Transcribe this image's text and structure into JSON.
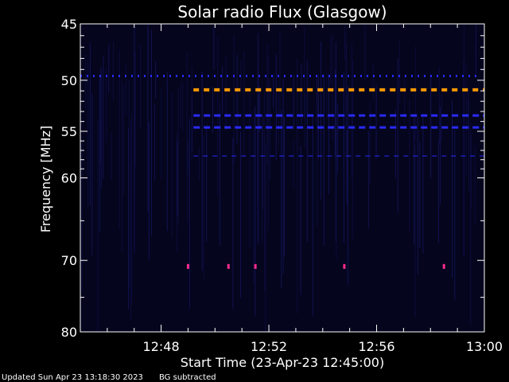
{
  "chart_data": {
    "type": "heatmap",
    "title": "Solar radio Flux (Glasgow)",
    "xlabel": "Start Time (23-Apr-23 12:45:00)",
    "ylabel": "Frequency [MHz]",
    "x_ticks": [
      "12:48",
      "12:52",
      "12:56",
      "13:00"
    ],
    "x_tick_minutes": [
      48,
      52,
      56,
      60
    ],
    "xlim_minutes": [
      45,
      60
    ],
    "y_ticks": [
      45,
      50,
      55,
      60,
      70,
      80
    ],
    "ylim": [
      45,
      80
    ],
    "y_scale": "log",
    "colors": {
      "background": "#05051e",
      "line_blue": "#2a2aff",
      "line_orange": "#ff9900",
      "spot_magenta": "#ff2a8c"
    },
    "bands": [
      {
        "freq": 49.6,
        "start_min": 45.0,
        "end_min": 59.8,
        "color": "line_blue",
        "style": "dashed-sparse"
      },
      {
        "freq": 50.9,
        "start_min": 49.2,
        "end_min": 60.0,
        "color": "line_orange",
        "style": "dashed-thick"
      },
      {
        "freq": 53.4,
        "start_min": 49.2,
        "end_min": 60.0,
        "color": "line_blue",
        "style": "dashed"
      },
      {
        "freq": 54.6,
        "start_min": 49.2,
        "end_min": 60.0,
        "color": "line_blue",
        "style": "dashed"
      },
      {
        "freq": 57.6,
        "start_min": 49.2,
        "end_min": 60.0,
        "color": "line_blue",
        "style": "dashed-faint"
      }
    ],
    "spots": [
      {
        "freq": 70.8,
        "minute": 49.0
      },
      {
        "freq": 70.8,
        "minute": 50.5
      },
      {
        "freq": 70.8,
        "minute": 51.5
      },
      {
        "freq": 70.8,
        "minute": 54.8
      },
      {
        "freq": 70.8,
        "minute": 58.5
      }
    ]
  },
  "footer": {
    "updated": "Updated Sun Apr 23 13:18:30 2023",
    "note": "BG subtracted"
  }
}
